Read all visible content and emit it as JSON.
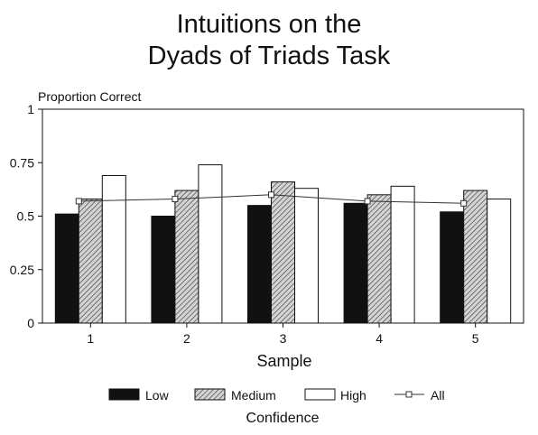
{
  "chart_data": {
    "type": "bar",
    "title": "Intuitions on the Dyads of Triads Task",
    "title_lines": [
      "Intuitions on the",
      "Dyads of Triads Task"
    ],
    "ylabel": "Proportion Correct",
    "xlabel": "Sample",
    "ylim": [
      0,
      1
    ],
    "yticks": [
      0,
      0.25,
      0.5,
      0.75,
      1
    ],
    "ytick_labels": [
      "0",
      "0.25",
      "0.5",
      "0.75",
      "1"
    ],
    "categories": [
      "1",
      "2",
      "3",
      "4",
      "5"
    ],
    "series": [
      {
        "name": "Low",
        "type": "bar",
        "fill": "solid-black",
        "values": [
          0.51,
          0.5,
          0.55,
          0.56,
          0.52
        ]
      },
      {
        "name": "Medium",
        "type": "bar",
        "fill": "hatched-gray",
        "values": [
          0.58,
          0.62,
          0.66,
          0.6,
          0.62
        ]
      },
      {
        "name": "High",
        "type": "bar",
        "fill": "white",
        "values": [
          0.69,
          0.74,
          0.63,
          0.64,
          0.58
        ]
      },
      {
        "name": "All",
        "type": "line",
        "marker": "square",
        "values": [
          0.57,
          0.58,
          0.6,
          0.57,
          0.56
        ]
      }
    ],
    "legend_title": "Confidence",
    "legend_position": "bottom",
    "grid": false
  }
}
